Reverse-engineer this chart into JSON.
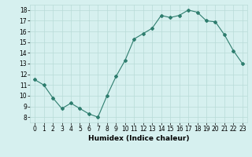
{
  "x": [
    0,
    1,
    2,
    3,
    4,
    5,
    6,
    7,
    8,
    9,
    10,
    11,
    12,
    13,
    14,
    15,
    16,
    17,
    18,
    19,
    20,
    21,
    22,
    23
  ],
  "y": [
    11.5,
    11.0,
    9.8,
    8.8,
    9.3,
    8.8,
    8.3,
    8.0,
    10.0,
    11.8,
    13.3,
    15.3,
    15.8,
    16.3,
    17.5,
    17.3,
    17.5,
    18.0,
    17.8,
    17.0,
    16.9,
    15.7,
    14.2,
    13.0
  ],
  "line_color": "#2e7d6e",
  "marker": "D",
  "marker_size": 2,
  "bg_color": "#d6f0ef",
  "grid_color": "#b8dbd8",
  "xlabel": "Humidex (Indice chaleur)",
  "xlim": [
    -0.5,
    23.5
  ],
  "ylim": [
    7.5,
    18.5
  ],
  "yticks": [
    8,
    9,
    10,
    11,
    12,
    13,
    14,
    15,
    16,
    17,
    18
  ],
  "xticks": [
    0,
    1,
    2,
    3,
    4,
    5,
    6,
    7,
    8,
    9,
    10,
    11,
    12,
    13,
    14,
    15,
    16,
    17,
    18,
    19,
    20,
    21,
    22,
    23
  ],
  "label_fontsize": 6.5,
  "tick_fontsize": 5.5
}
